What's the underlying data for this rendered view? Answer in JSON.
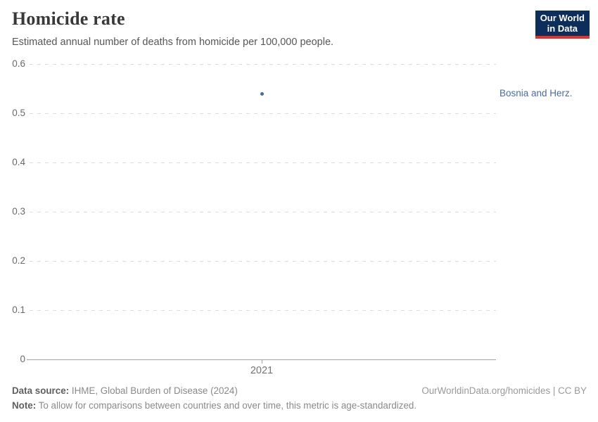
{
  "header": {
    "title": "Homicide rate",
    "subtitle": "Estimated annual number of deaths from homicide per 100,000 people.",
    "logo": {
      "line1": "Our World",
      "line2": "in Data",
      "bg_color": "#0d2e5b",
      "bar_color": "#dc352c",
      "text_color": "#ffffff"
    }
  },
  "chart_data": {
    "type": "scatter",
    "title": "Homicide rate",
    "subtitle": "Estimated annual number of deaths from homicide per 100,000 people.",
    "xlabel": "",
    "ylabel": "",
    "grid": true,
    "ylim": [
      0,
      0.6
    ],
    "y_ticks": [
      {
        "value": 0,
        "label": "0"
      },
      {
        "value": 0.1,
        "label": "0.1"
      },
      {
        "value": 0.2,
        "label": "0.2"
      },
      {
        "value": 0.3,
        "label": "0.3"
      },
      {
        "value": 0.4,
        "label": "0.4"
      },
      {
        "value": 0.5,
        "label": "0.5"
      },
      {
        "value": 0.6,
        "label": "0.6"
      }
    ],
    "x_ticks": [
      {
        "value": 2021,
        "label": "2021"
      }
    ],
    "series": [
      {
        "name": "Bosnia and Herz.",
        "color": "#4c6a9e",
        "points": [
          {
            "x": 2021,
            "y": 0.54
          }
        ]
      }
    ],
    "legend_position": "right-of-plot"
  },
  "footer": {
    "datasource_label": "Data source:",
    "datasource_text": " IHME, Global Burden of Disease (2024)",
    "note_label": "Note:",
    "note_text": " To allow for comparisons between countries and over time, this metric is age-standardized.",
    "citation": "OurWorldinData.org/homicides | CC BY"
  }
}
